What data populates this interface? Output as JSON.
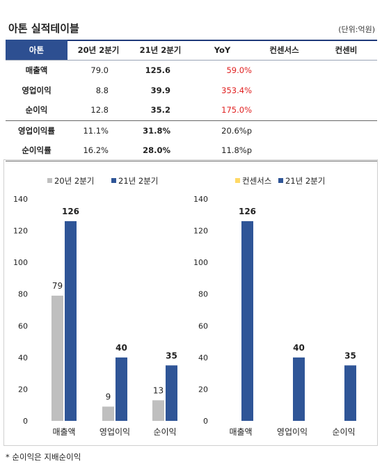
{
  "header": {
    "title": "아톤 실적테이블",
    "unit": "(단위:억원)"
  },
  "table": {
    "columns": [
      "아톤",
      "20년 2분기",
      "21년 2분기",
      "YoY",
      "컨센서스",
      "컨센비"
    ],
    "rows": [
      {
        "label": "매출액",
        "prev": "79.0",
        "curr": "125.6",
        "yoy": "59.0%",
        "cons": "",
        "ratio": ""
      },
      {
        "label": "영업이익",
        "prev": "8.8",
        "curr": "39.9",
        "yoy": "353.4%",
        "cons": "",
        "ratio": ""
      },
      {
        "label": "순이익",
        "prev": "12.8",
        "curr": "35.2",
        "yoy": "175.0%",
        "cons": "",
        "ratio": ""
      },
      {
        "label": "영업이익률",
        "prev": "11.1%",
        "curr": "31.8%",
        "yoy": "20.6%p",
        "cons": "",
        "ratio": ""
      },
      {
        "label": "순이익률",
        "prev": "16.2%",
        "curr": "28.0%",
        "yoy": "11.8%p",
        "cons": "",
        "ratio": ""
      }
    ]
  },
  "colors": {
    "header_bg": "#2d4f91",
    "prev_bar": "#bfbfbf",
    "curr_bar": "#2f5597",
    "consensus_bar": "#ffd966",
    "yoy_red": "#e02020"
  },
  "chart_data": [
    {
      "type": "bar",
      "categories": [
        "매출액",
        "영업이익",
        "순이익"
      ],
      "series": [
        {
          "name": "20년 2분기",
          "values": [
            79,
            9,
            13
          ]
        },
        {
          "name": "21년 2분기",
          "values": [
            126,
            40,
            35
          ]
        }
      ],
      "ylim": [
        0,
        140
      ],
      "yticks": [
        0,
        20,
        40,
        60,
        80,
        100,
        120,
        140
      ],
      "legend": "top-center",
      "grid": false
    },
    {
      "type": "bar",
      "categories": [
        "매출액",
        "영업이익",
        "순이익"
      ],
      "series": [
        {
          "name": "컨센서스",
          "values": [
            null,
            null,
            null
          ]
        },
        {
          "name": "21년 2분기",
          "values": [
            126,
            40,
            35
          ]
        }
      ],
      "ylim": [
        0,
        140
      ],
      "yticks": [
        0,
        20,
        40,
        60,
        80,
        100,
        120,
        140
      ],
      "legend": "top-center",
      "grid": false
    }
  ],
  "footnote": "* 순이익은 지배순이익"
}
